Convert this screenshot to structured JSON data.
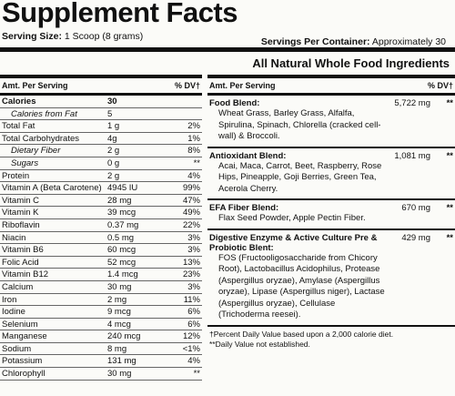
{
  "header": {
    "title": "Supplement Facts",
    "serving_size": {
      "label": "Serving Size:",
      "value": "1 Scoop (8 grams)"
    },
    "servings_per_container": {
      "label": "Servings Per Container:",
      "value": "Approximately 30"
    },
    "subtitle": "All Natural Whole Food Ingredients"
  },
  "left_table": {
    "columns": [
      "Amt. Per Serving",
      "% DV†"
    ],
    "rows": [
      {
        "name": "Calories",
        "amount": "30"
      },
      {
        "name": "Calories from Fat",
        "amount": "5",
        "indent": true
      },
      {
        "name": "Total Fat",
        "amount": "1 g",
        "dv": "2%"
      },
      {
        "name": "Total Carbohydrates",
        "amount": "4g",
        "dv": "1%"
      },
      {
        "name": "Dietary Fiber",
        "amount": "2 g",
        "dv": "8%",
        "indent": true
      },
      {
        "name": "Sugars",
        "amount": "0 g",
        "dv": "**",
        "indent": true
      },
      {
        "name": "Protein",
        "amount": "2 g",
        "dv": "4%"
      },
      {
        "name": "Vitamin A (Beta Carotene)",
        "amount": "4945 IU",
        "dv": "99%"
      },
      {
        "name": "Vitamin C",
        "amount": "28 mg",
        "dv": "47%"
      },
      {
        "name": "Vitamin K",
        "amount": "39 mcg",
        "dv": "49%"
      },
      {
        "name": "Riboflavin",
        "amount": "0.37 mg",
        "dv": "22%"
      },
      {
        "name": "Niacin",
        "amount": "0.5 mg",
        "dv": "3%"
      },
      {
        "name": "Vitamin B6",
        "amount": "60 mcg",
        "dv": "3%"
      },
      {
        "name": "Folic Acid",
        "amount": "52 mcg",
        "dv": "13%"
      },
      {
        "name": "Vitamin B12",
        "amount": "1.4 mcg",
        "dv": "23%"
      },
      {
        "name": "Calcium",
        "amount": "30 mg",
        "dv": "3%"
      },
      {
        "name": "Iron",
        "amount": "2 mg",
        "dv": "11%"
      },
      {
        "name": "Iodine",
        "amount": "9 mcg",
        "dv": "6%"
      },
      {
        "name": "Selenium",
        "amount": "4 mcg",
        "dv": "6%"
      },
      {
        "name": "Manganese",
        "amount": "240 mcg",
        "dv": "12%"
      },
      {
        "name": "Sodium",
        "amount": "8 mg",
        "dv": "<1%"
      },
      {
        "name": "Potassium",
        "amount": "131 mg",
        "dv": "4%"
      },
      {
        "name": "Chlorophyll",
        "amount": "30 mg",
        "dv": "**"
      }
    ]
  },
  "right_table": {
    "columns": [
      "Amt. Per Serving",
      "% DV†"
    ],
    "blends": [
      {
        "name": "Food Blend:",
        "amount": "5,722 mg",
        "dv": "**",
        "ingredients": "Wheat Grass, Barley Grass, Alfalfa, Spirulina, Spinach, Chlorella (cracked cell-wall) & Broccoli."
      },
      {
        "name": "Antioxidant Blend:",
        "amount": "1,081 mg",
        "dv": "**",
        "ingredients": "Acai, Maca, Carrot, Beet, Raspberry, Rose Hips, Pineapple, Goji Berries, Green Tea, Acerola Cherry."
      },
      {
        "name": "EFA Fiber Blend:",
        "amount": "670 mg",
        "dv": "**",
        "ingredients": "Flax Seed Powder, Apple Pectin Fiber."
      },
      {
        "name": "Digestive Enzyme & Active Culture Pre & Probiotic Blent:",
        "amount": "429 mg",
        "dv": "**",
        "ingredients": "FOS (Fructooligosaccharide from Chicory Root), Lactobacillus Acidophilus, Protease (Aspergillus oryzae), Amylase (Aspergillus oryzae), Lipase (Aspergillus niger), Lactase (Aspergillus oryzae), Cellulase (Trichoderma reesei)."
      }
    ],
    "footnotes": [
      "†Percent Daily Value based upon a 2,000 calorie diet.",
      "**Daily Value not established."
    ]
  }
}
